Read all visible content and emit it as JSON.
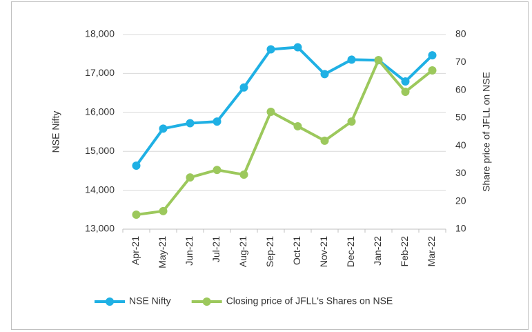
{
  "chart_data": {
    "type": "line",
    "categories": [
      "Apr-21",
      "May-21",
      "Jun-21",
      "Jul-21",
      "Aug-21",
      "Sep-21",
      "Oct-21",
      "Nov-21",
      "Dec-21",
      "Jan-22",
      "Feb-22",
      "Mar-22"
    ],
    "series": [
      {
        "name": "NSE Nifty",
        "color": "#1fb0e4",
        "values": [
          14631,
          15583,
          15721,
          15763,
          16640,
          17618,
          17671,
          16983,
          17354,
          17340,
          16794,
          17465
        ]
      },
      {
        "name": "Closing price of JFLL's Shares on NSE",
        "color": "#9cc85c",
        "axis": "y2",
        "values": [
          15.2,
          16.5,
          28.6,
          31.3,
          29.6,
          52.2,
          47.0,
          41.8,
          48.7,
          70.8,
          59.4,
          67.1
        ]
      }
    ],
    "ylabel": "NSE Nifty",
    "y2label": "Share price of JFLL on NSE",
    "ylim": [
      13000,
      18000
    ],
    "yticks": [
      {
        "value": 13000,
        "label": "13,000"
      },
      {
        "value": 14000,
        "label": "14,000"
      },
      {
        "value": 15000,
        "label": "15,000"
      },
      {
        "value": 16000,
        "label": "16,000"
      },
      {
        "value": 17000,
        "label": "17,000"
      },
      {
        "value": 18000,
        "label": "18,000"
      }
    ],
    "y2lim": [
      10,
      80
    ],
    "y2ticks": [
      10,
      20,
      30,
      40,
      50,
      60,
      70,
      80
    ],
    "grid": true,
    "legend": "bottom"
  }
}
